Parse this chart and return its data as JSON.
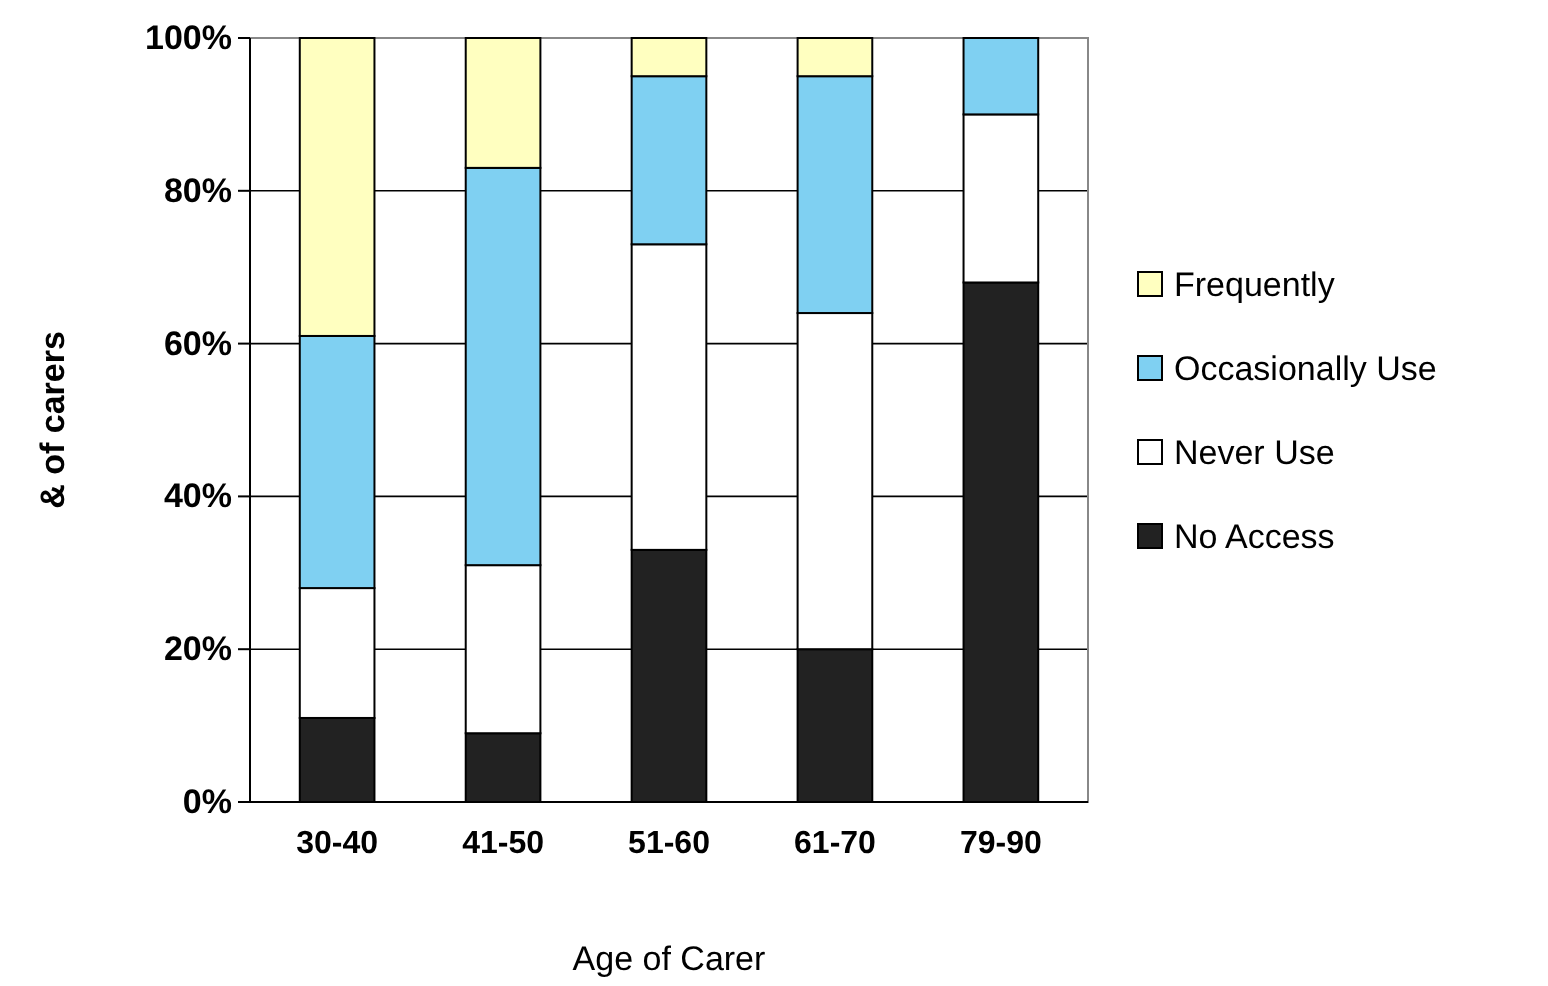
{
  "chart_data": {
    "type": "bar",
    "stacked": true,
    "xlabel": "Age of Carer",
    "ylabel": "& of carers",
    "categories": [
      "30-40",
      "41-50",
      "51-60",
      "61-70",
      "79-90"
    ],
    "series": [
      {
        "name": "No Access",
        "color": "#222222",
        "values": [
          11,
          9,
          33,
          20,
          68
        ]
      },
      {
        "name": "Never Use",
        "color": "#ffffff",
        "values": [
          17,
          22,
          40,
          44,
          22
        ]
      },
      {
        "name": "Occasionally Use",
        "color": "#7fd0f2",
        "values": [
          33,
          52,
          22,
          31,
          10
        ]
      },
      {
        "name": "Frequently",
        "color": "#ffffc0",
        "values": [
          39,
          17,
          5,
          5,
          0
        ]
      }
    ],
    "ylim": [
      0,
      100
    ],
    "yticks": [
      {
        "value": 0,
        "label": "0%"
      },
      {
        "value": 20,
        "label": "20%"
      },
      {
        "value": 40,
        "label": "40%"
      },
      {
        "value": 60,
        "label": "60%"
      },
      {
        "value": 80,
        "label": "80%"
      },
      {
        "value": 100,
        "label": "100%"
      }
    ],
    "grid": "y",
    "legend": "right"
  }
}
